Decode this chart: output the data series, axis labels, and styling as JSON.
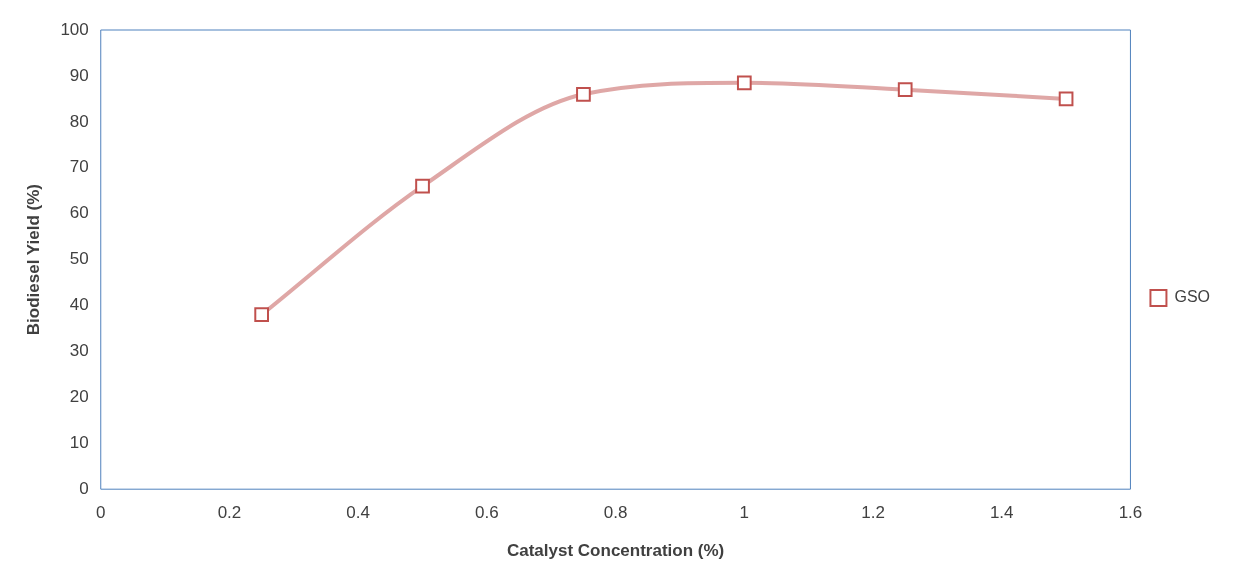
{
  "chart_data": {
    "type": "line",
    "xlabel": "Catalyst Concentration (%)",
    "ylabel": "Biodiesel Yield (%)",
    "x": [
      0.25,
      0.5,
      0.75,
      1,
      1.25,
      1.5
    ],
    "series": [
      {
        "name": "GSO",
        "color": "#c0504d",
        "values": [
          38,
          66,
          86,
          88.5,
          87,
          85
        ]
      }
    ],
    "xlim": [
      0,
      1.6
    ],
    "xticks": [
      0,
      0.2,
      0.4,
      0.6,
      0.8,
      1,
      1.2,
      1.4,
      1.6
    ],
    "ylim": [
      0,
      100
    ],
    "yticks": [
      0,
      10,
      20,
      30,
      40,
      50,
      60,
      70,
      80,
      90,
      100
    ],
    "grid": false,
    "legend": "right",
    "marker": "square",
    "line_style": "solid"
  }
}
